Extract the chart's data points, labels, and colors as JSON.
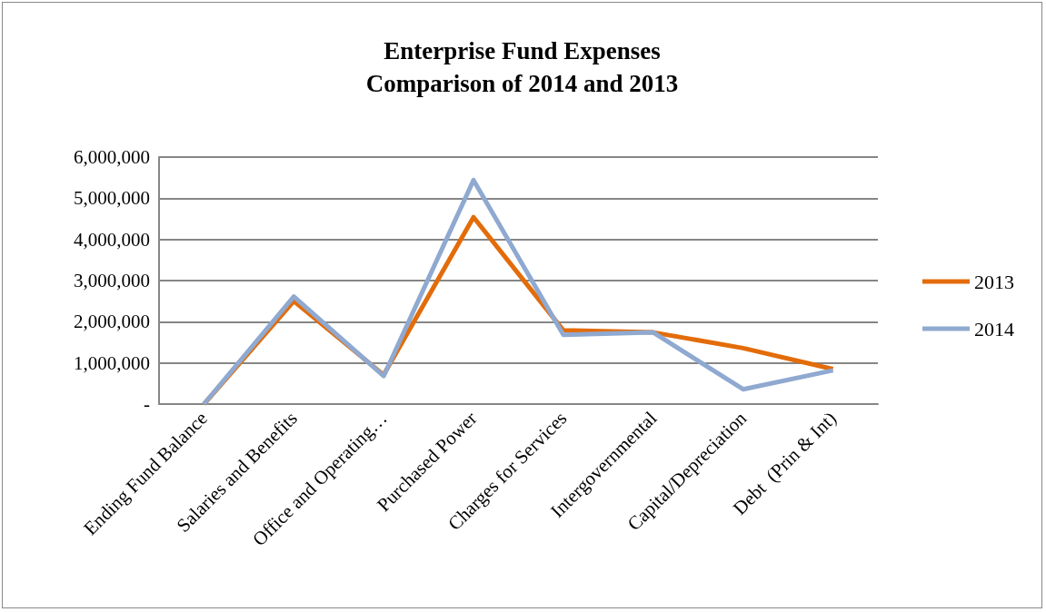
{
  "chart_data": {
    "type": "line",
    "title": "Enterprise Fund Expenses\nComparison of 2014 and 2013",
    "categories": [
      "Ending Fund Balance",
      "Salaries and Benefits",
      "Office and Operating…",
      "Purchased Power",
      "Charges for Services",
      "Intergovernmental",
      "Capital/Depreciation",
      "Debt  (Prin & Int)"
    ],
    "series": [
      {
        "name": "2013",
        "color": "#e36c0a",
        "values": [
          0,
          2500000,
          710000,
          4540000,
          1790000,
          1740000,
          1360000,
          850000
        ]
      },
      {
        "name": "2014",
        "color": "#8fa9d0",
        "values": [
          0,
          2610000,
          680000,
          5440000,
          1680000,
          1740000,
          360000,
          820000
        ]
      }
    ],
    "ylim": [
      0,
      6000000
    ],
    "yticks": [
      {
        "value": 0,
        "label": "-"
      },
      {
        "value": 1000000,
        "label": "1,000,000"
      },
      {
        "value": 2000000,
        "label": "2,000,000"
      },
      {
        "value": 3000000,
        "label": "3,000,000"
      },
      {
        "value": 4000000,
        "label": "4,000,000"
      },
      {
        "value": 5000000,
        "label": "5,000,000"
      },
      {
        "value": 6000000,
        "label": "6,000,000"
      }
    ],
    "grid": "y",
    "legend": "right",
    "marker": "none",
    "line_style": "solid"
  }
}
